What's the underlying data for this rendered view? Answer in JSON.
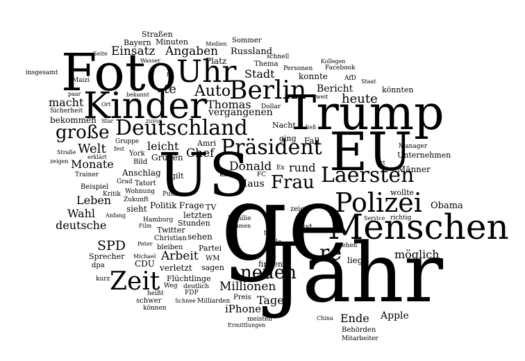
{
  "words": [
    "ge",
    "Jahr",
    "US",
    "EU",
    "Trump",
    "Foto",
    "Menschen",
    "Kinder",
    "Uhr",
    "Berlin",
    "Deutschland",
    "Polizei",
    "Präsident",
    "Laersten",
    "Frau",
    "re",
    "Zeit",
    "neuen",
    "große",
    "Auto",
    "SPD",
    "Welt",
    "heute",
    "Thomas",
    "Bericht",
    "Angaben",
    "Einsatz",
    "Stadt",
    "macht",
    "Monate",
    "Leben",
    "Wahl",
    "deutsche",
    "Donald",
    "Chef",
    "leicht",
    "Haus",
    "rund",
    "Arbeit",
    "Millionen",
    "Tage",
    "Ende",
    "Apple",
    "möglich",
    "Obama",
    "iPhone",
    "Männer",
    "Unternehmen",
    "wollte",
    "Grünen",
    "te",
    "vergangenen",
    "bekommen",
    "Russland",
    "Platz",
    "Straßen",
    "Minuten",
    "Bayern",
    "Sommer",
    "Medien",
    "Seite",
    "Wasser",
    "IS",
    "insgesamt",
    "schnell",
    "Thema",
    "Kollegen",
    "Personen",
    "Facebook",
    "konnte",
    "AfD",
    "Staat",
    "könnten",
    "weit",
    "Maizi",
    "paar",
    "bekannt",
    "Ort",
    "Sicherheit",
    "Dollar",
    "Nacht",
    "ließ",
    "Star",
    "zuvor",
    "ging",
    "Fall",
    "Gruppe",
    "fest",
    "Straße",
    "erklärt",
    "zeigen",
    "York",
    "Bild",
    "Manager",
    "Art",
    "Ex",
    "FC",
    "knapp",
    "gilt",
    "Anschlag",
    "Trainer",
    "Grad",
    "Tatort",
    "Beispiel",
    "Wohnung",
    "Kritik",
    "Zukunft",
    "sieht",
    "Politik",
    "Frage",
    "TV",
    "Amri",
    "Putin",
    "letzten",
    "Anfang",
    "Hamburg",
    "Stunden",
    "Film",
    "Twitter",
    "Familie",
    "kamen",
    "zeigt",
    "lässt",
    "richtig",
    "tun",
    "Rolle",
    "stehen",
    "Christian",
    "Peter",
    "bleiben",
    "sehen",
    "Partei",
    "Sprecher",
    "Michael",
    "CDU",
    "WM",
    "sagen",
    "liegt",
    "dpa",
    "verletzt",
    "finden",
    "Flüchtlinge",
    "kurz",
    "Weg",
    "deutlich",
    "heißt",
    "FDP",
    "Preis",
    "schwer",
    "Schnee",
    "Milliarden",
    "meisten",
    "China",
    "Behörden",
    "können",
    "Ermittlungen",
    "Mitarbeiter",
    "Service"
  ]
}
